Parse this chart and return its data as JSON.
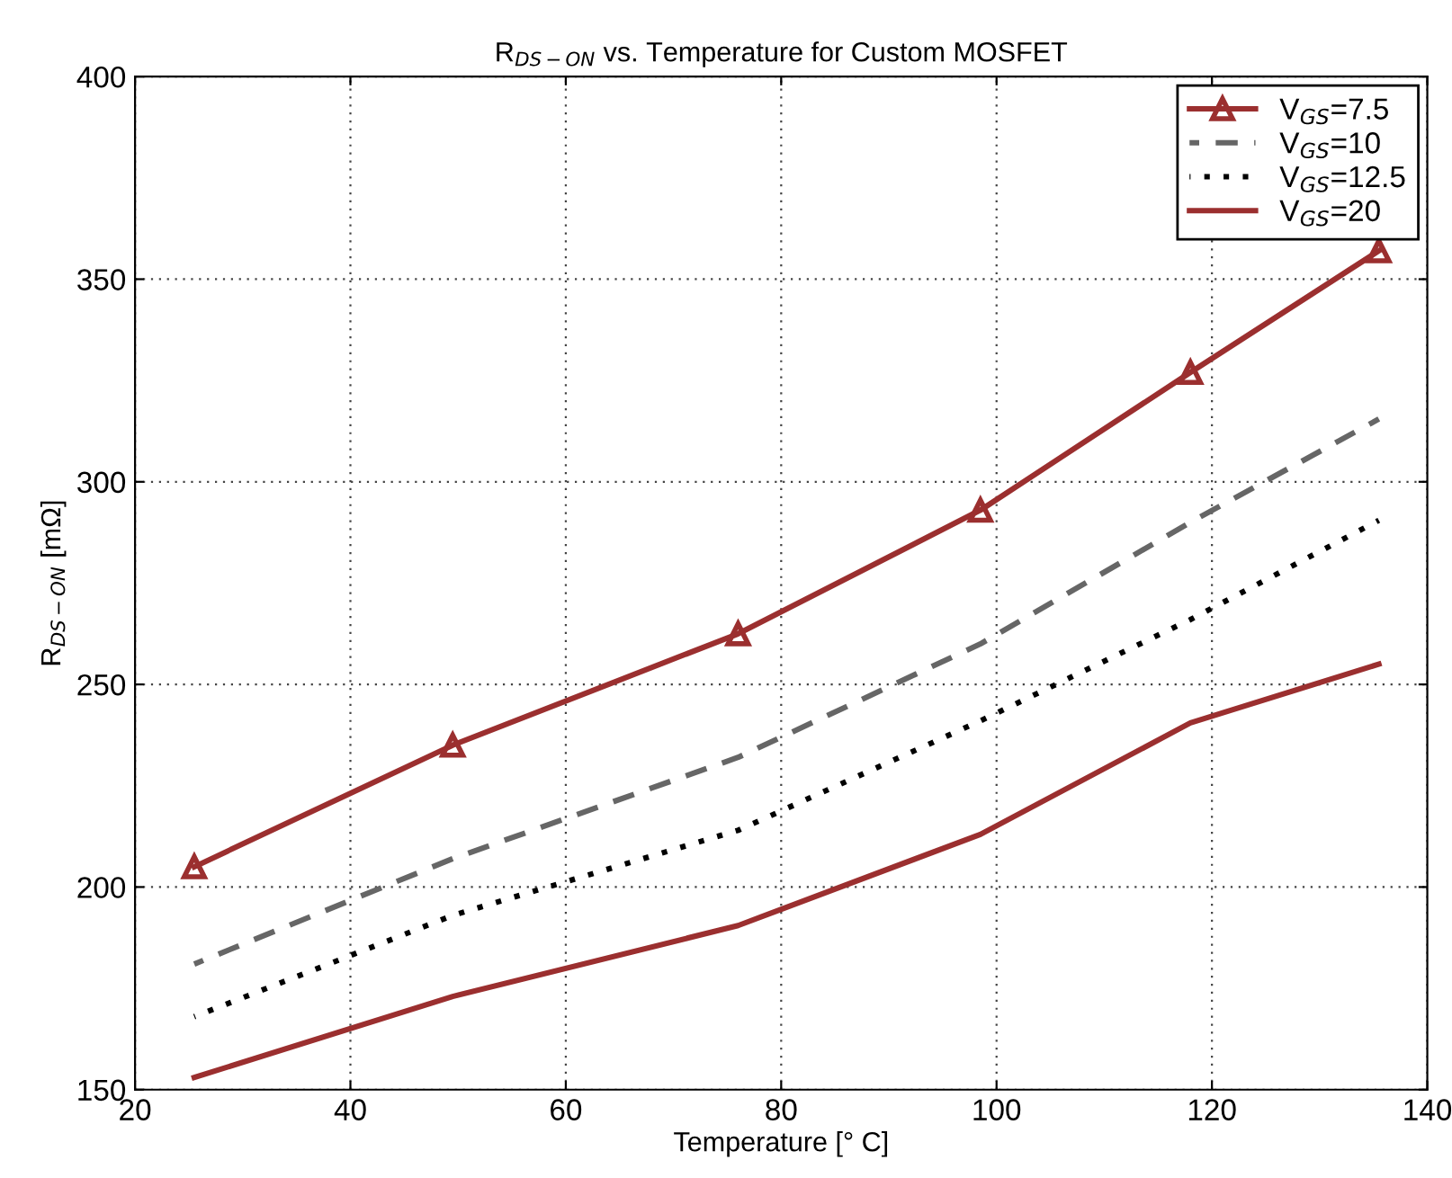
{
  "chart_data": {
    "type": "line",
    "title": "R$_{DS−ON}$ vs. Temperature for Custom MOSFET",
    "xlabel": "Temperature [° C]",
    "ylabel": "R$_{DS−ON}$ [mΩ]",
    "x": [
      25.5,
      49.5,
      76,
      98.5,
      118,
      135.5
    ],
    "series": [
      {
        "name": "V$_{GS}$=7.5",
        "color": "#9b2f2f",
        "marker": "triangle",
        "line_style": "solid",
        "values": [
          205,
          235,
          262.5,
          293,
          327,
          357
        ]
      },
      {
        "name": "V$_{GS}$=10",
        "color": "#666666",
        "marker": "none",
        "line_style": "dashed",
        "values": [
          181,
          207,
          232,
          260,
          290,
          315.5
        ]
      },
      {
        "name": "V$_{GS}$=12.5",
        "color": "#000000",
        "marker": "none",
        "line_style": "dotted",
        "values": [
          168,
          193,
          214,
          241,
          266,
          290.5
        ]
      },
      {
        "name": "V$_{GS}$=20",
        "color": "#9b2f2f",
        "marker": "none",
        "line_style": "solid",
        "values": [
          153,
          173,
          190.5,
          213,
          240.5,
          255
        ]
      }
    ],
    "xlim": [
      20,
      140
    ],
    "xticks": [
      20,
      40,
      60,
      80,
      100,
      120,
      140
    ],
    "ylim": [
      150,
      400
    ],
    "yticks": [
      150,
      200,
      250,
      300,
      350,
      400
    ],
    "grid": true,
    "legend": "top right"
  }
}
